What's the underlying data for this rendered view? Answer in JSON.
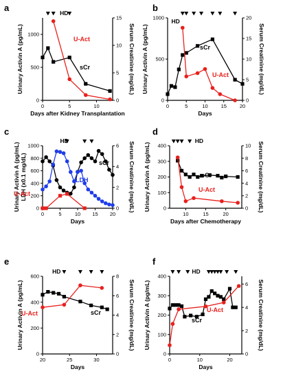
{
  "chart_data": [
    {
      "panel": "a",
      "type": "line",
      "xlabel": "Days after Kidney Transplantation",
      "ylabel_left": "Urinary Activin A (pg/mL)",
      "ylabel_right": "Serum Creatinine (mg/dL)",
      "xlim": [
        0,
        13
      ],
      "xticks": [
        0,
        5,
        10
      ],
      "ylim_left": [
        0,
        1250
      ],
      "yticks_left": [
        0,
        500,
        1000
      ],
      "ylim_right": [
        0,
        15
      ],
      "yticks_right": [
        0,
        5,
        10,
        15
      ],
      "hd_label": "HD",
      "hd_markers": [
        1,
        2,
        5
      ],
      "series": [
        {
          "name": "sCr",
          "axis": "right",
          "color": "#000000",
          "marker": "square",
          "x": [
            0,
            1,
            2,
            5,
            8,
            12.5
          ],
          "y": [
            7.8,
            9.5,
            7.0,
            7.8,
            3.0,
            1.7
          ]
        },
        {
          "name": "U-Act",
          "axis": "left",
          "color": "#e8201c",
          "marker": "circle",
          "x": [
            2,
            5,
            8,
            12.5
          ],
          "y": [
            1200,
            320,
            80,
            15
          ]
        }
      ]
    },
    {
      "panel": "b",
      "type": "line",
      "xlabel": "Days",
      "ylabel_left": "Urinary Activin A (pg/mL)",
      "ylabel_right": "Serum Creatinine (mg/dL)",
      "xlim": [
        0,
        20
      ],
      "xticks": [
        0,
        5,
        10,
        15,
        20
      ],
      "ylim_left": [
        0,
        1000
      ],
      "yticks_left": [
        0,
        500,
        1000
      ],
      "ylim_right": [
        0,
        20
      ],
      "yticks_right": [
        0,
        5,
        10,
        15,
        20
      ],
      "hd_label": "HD",
      "hd_markers": [
        4,
        5,
        7,
        9,
        12,
        14,
        18
      ],
      "series": [
        {
          "name": "sCr",
          "axis": "right",
          "color": "#000000",
          "marker": "square",
          "x": [
            0,
            1,
            2,
            3,
            4,
            5,
            8,
            12,
            18,
            20
          ],
          "y": [
            1.5,
            3.5,
            3.2,
            7.5,
            11.0,
            11.5,
            13.2,
            14.8,
            5.0,
            4.0
          ]
        },
        {
          "name": "U-Act",
          "axis": "left",
          "color": "#e8201c",
          "marker": "circle",
          "x": [
            4,
            5,
            8,
            10,
            12,
            14,
            18
          ],
          "y": [
            880,
            290,
            330,
            380,
            150,
            75,
            0
          ]
        }
      ]
    },
    {
      "panel": "c",
      "type": "line",
      "xlabel": "Days",
      "ylabel_left": "Urinary Activin A (pg/mL)\nLDH (x0.1 mg/dL)",
      "ylabel_right": "Serum Creatinine (mg/dL)",
      "xlim": [
        0,
        20
      ],
      "xticks": [
        0,
        5,
        10,
        15,
        20
      ],
      "ylim_left": [
        0,
        1000
      ],
      "yticks_left": [
        0,
        200,
        400,
        600,
        800,
        1000
      ],
      "ylim_right": [
        0,
        6
      ],
      "yticks_right": [
        0,
        2,
        4,
        6
      ],
      "hd_label": "HD",
      "hd_markers": [
        7,
        12,
        14
      ],
      "series": [
        {
          "name": "sCr",
          "axis": "right",
          "color": "#000000",
          "marker": "circle",
          "x": [
            0,
            1,
            2,
            3,
            4,
            5,
            6,
            7,
            8,
            9,
            10,
            11,
            12,
            13,
            14,
            15,
            16,
            17,
            18,
            19,
            20
          ],
          "y": [
            4.5,
            4.9,
            4.5,
            4.1,
            2.7,
            2.0,
            1.7,
            1.5,
            1.4,
            2.0,
            3.5,
            4.4,
            4.8,
            5.1,
            4.8,
            4.5,
            5.5,
            5.2,
            4.5,
            3.7,
            3.2
          ]
        },
        {
          "name": "LDH",
          "axis": "left",
          "color": "#1f3de8",
          "marker": "circle",
          "x": [
            0,
            1,
            2,
            3,
            4,
            5,
            6,
            7,
            8,
            9,
            10,
            11,
            12,
            13,
            14,
            15,
            16,
            17,
            18,
            19,
            20
          ],
          "y": [
            300,
            350,
            430,
            700,
            910,
            900,
            880,
            750,
            580,
            430,
            580,
            600,
            400,
            300,
            250,
            200,
            150,
            110,
            80,
            60,
            50
          ]
        },
        {
          "name": "U-Act",
          "axis": "left",
          "color": "#e8201c",
          "marker": "square",
          "x": [
            0,
            1,
            5,
            7,
            12
          ],
          "y": [
            0,
            0,
            200,
            230,
            0
          ]
        }
      ]
    },
    {
      "panel": "d",
      "type": "line",
      "xlabel": "Days after Chemotherapy",
      "ylabel_left": "Urinary Activin A (pg/mL)",
      "ylabel_right": "Serum Creatinine (mg/dL)",
      "xlim": [
        6,
        24
      ],
      "xticks": [
        10,
        15,
        20
      ],
      "ylim_left": [
        0,
        400
      ],
      "yticks_left": [
        0,
        100,
        200,
        300,
        400
      ],
      "ylim_right": [
        0,
        10
      ],
      "yticks_right": [
        0,
        2,
        4,
        6,
        8,
        10
      ],
      "hd_label": "HD",
      "hd_markers": [
        7,
        8,
        9,
        11
      ],
      "series": [
        {
          "name": "sCr",
          "axis": "right",
          "color": "#000000",
          "marker": "square",
          "x": [
            8,
            9,
            10,
            11,
            12,
            13,
            14,
            16,
            18,
            19,
            20,
            23
          ],
          "y": [
            7.6,
            6.0,
            5.4,
            5.0,
            5.4,
            5.0,
            5.2,
            5.3,
            5.2,
            4.9,
            5.1,
            5.0
          ]
        },
        {
          "name": "U-Act",
          "axis": "left",
          "color": "#e8201c",
          "marker": "circle",
          "x": [
            8,
            9,
            10,
            12,
            19,
            23
          ],
          "y": [
            325,
            135,
            45,
            65,
            45,
            35
          ]
        }
      ]
    },
    {
      "panel": "e",
      "type": "line",
      "xlabel": "Days",
      "ylabel_left": "Urinary Activin A (pg/mL)",
      "ylabel_right": "Serum Creatinine (mg/dL)",
      "xlim": [
        20,
        33
      ],
      "xticks": [
        20,
        25,
        30
      ],
      "ylim_left": [
        0,
        600
      ],
      "yticks_left": [
        0,
        200,
        400,
        600
      ],
      "ylim_right": [
        0,
        8
      ],
      "yticks_right": [
        0,
        2,
        4,
        6,
        8
      ],
      "hd_label": "HD",
      "hd_markers": [
        24,
        27,
        29,
        31
      ],
      "series": [
        {
          "name": "sCr",
          "axis": "right",
          "color": "#000000",
          "marker": "square",
          "x": [
            20,
            21,
            22,
            23,
            24,
            27,
            29,
            31,
            32
          ],
          "y": [
            6.1,
            6.4,
            6.3,
            6.2,
            5.9,
            5.4,
            5.0,
            4.8,
            4.6
          ]
        },
        {
          "name": "U-Act",
          "axis": "left",
          "color": "#e8201c",
          "marker": "circle",
          "x": [
            20,
            24,
            27,
            31
          ],
          "y": [
            360,
            380,
            530,
            510
          ]
        }
      ]
    },
    {
      "panel": "f",
      "type": "line",
      "xlabel": "Days",
      "ylabel_left": "Urinary Activin A (pg/mL)",
      "ylabel_right": "Serum Creatinine (mg/dL)",
      "xlim": [
        0,
        24
      ],
      "xticks": [
        0,
        10,
        20
      ],
      "ylim_left": [
        0,
        400
      ],
      "yticks_left": [
        0,
        100,
        200,
        300,
        400
      ],
      "ylim_right": [
        0,
        6.667
      ],
      "yticks_right": [
        0,
        2,
        4,
        6
      ],
      "hd_label": "HD",
      "hd_markers": [
        1,
        3,
        6,
        13,
        14,
        15,
        16,
        17,
        19,
        22
      ],
      "series": [
        {
          "name": "sCr",
          "axis": "right",
          "color": "#000000",
          "marker": "square",
          "x": [
            0,
            1,
            2,
            3,
            4,
            5,
            7,
            9,
            11,
            12,
            13,
            14,
            15,
            16,
            17,
            18,
            20,
            21,
            22
          ],
          "y": [
            3.9,
            4.2,
            4.2,
            4.2,
            4.1,
            3.2,
            3.3,
            3.2,
            3.4,
            4.7,
            4.9,
            5.4,
            5.2,
            5.0,
            4.9,
            4.7,
            5.6,
            4.0,
            4.0
          ]
        },
        {
          "name": "U-Act",
          "axis": "left",
          "color": "#e8201c",
          "marker": "circle",
          "x": [
            0,
            1,
            3,
            12,
            18,
            23
          ],
          "y": [
            45,
            155,
            230,
            245,
            265,
            350
          ]
        }
      ]
    }
  ]
}
